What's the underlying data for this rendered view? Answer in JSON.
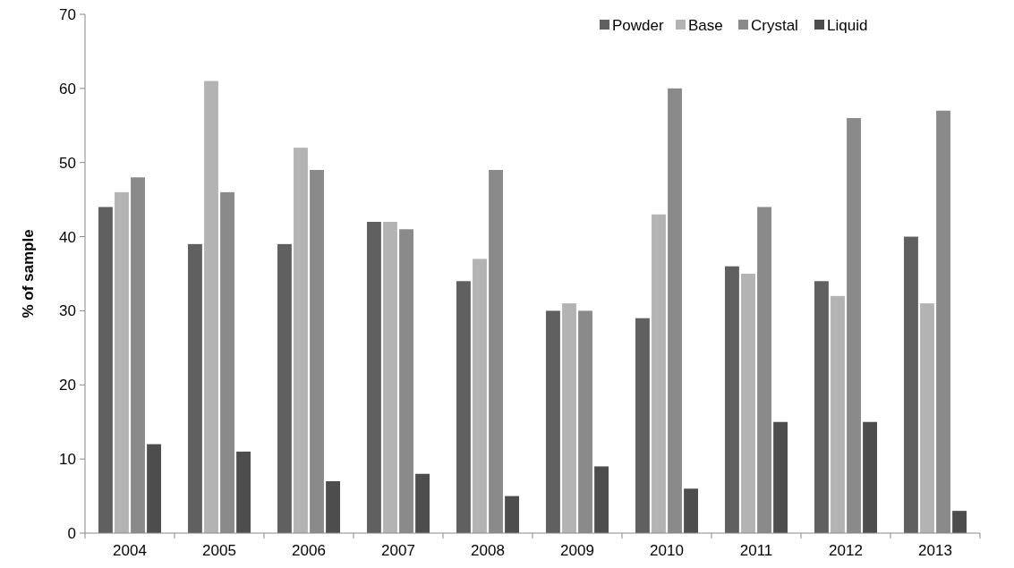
{
  "chart_data": {
    "type": "bar",
    "ylabel": "% of sample",
    "categories": [
      "2004",
      "2005",
      "2006",
      "2007",
      "2008",
      "2009",
      "2010",
      "2011",
      "2012",
      "2013"
    ],
    "series": [
      {
        "name": "Powder",
        "color": "#606060",
        "values": [
          44,
          39,
          39,
          42,
          34,
          30,
          29,
          36,
          34,
          40
        ]
      },
      {
        "name": "Base",
        "color": "#b3b3b3",
        "values": [
          46,
          61,
          52,
          42,
          37,
          31,
          43,
          35,
          32,
          31
        ]
      },
      {
        "name": "Crystal",
        "color": "#8a8a8a",
        "values": [
          48,
          46,
          49,
          41,
          49,
          30,
          60,
          44,
          56,
          57
        ]
      },
      {
        "name": "Liquid",
        "color": "#4d4d4d",
        "values": [
          12,
          11,
          7,
          8,
          5,
          9,
          6,
          15,
          15,
          3
        ]
      }
    ],
    "ylim": [
      0,
      70
    ],
    "yticks": [
      0,
      10,
      20,
      30,
      40,
      50,
      60,
      70
    ],
    "grid": false,
    "legend": "top right"
  }
}
